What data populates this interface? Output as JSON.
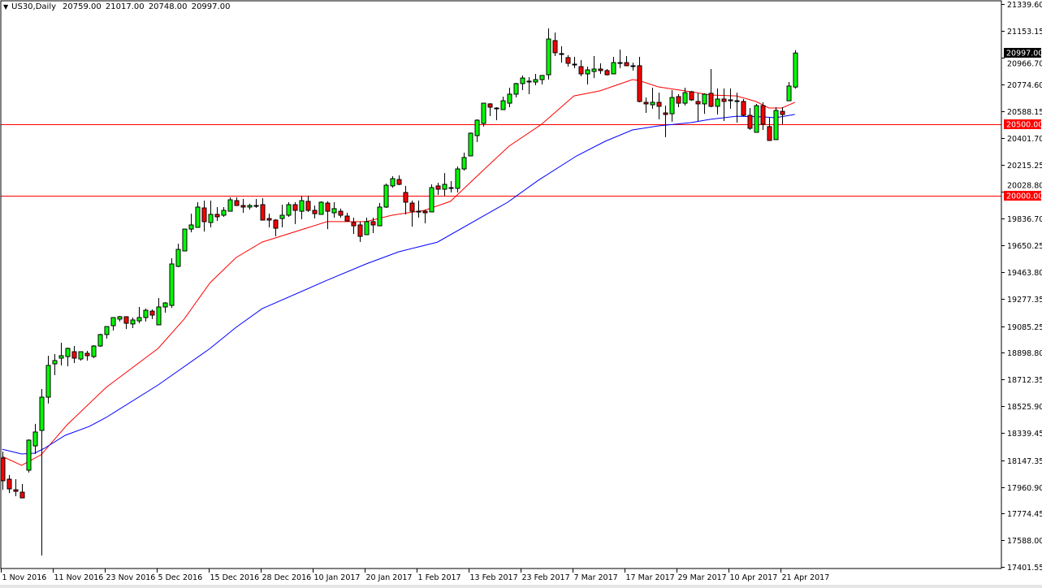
{
  "header": {
    "symbol": "US30,Daily",
    "ohlc_text": "20759.00 21017.00 20748.00 20997.00"
  },
  "colors": {
    "bull": "#00ff00",
    "bear": "#ff0000",
    "outline": "#000000",
    "ma_fast": "#ff0000",
    "ma_slow": "#0000ff",
    "level_line": "#ff0000",
    "level_label_bg": "#ff0000",
    "current_price_bg": "#000000"
  },
  "chart_data": {
    "type": "candlestick",
    "title": "US30,Daily",
    "ylim": [
      17401.55,
      21339.6
    ],
    "y_ticks": [
      "21339.60",
      "21153.15",
      "20966.70",
      "20774.60",
      "20588.15",
      "20401.70",
      "20215.25",
      "20028.80",
      "19836.70",
      "19650.25",
      "19463.80",
      "19277.35",
      "19085.25",
      "18898.80",
      "18712.35",
      "18525.90",
      "18339.45",
      "18147.35",
      "17960.90",
      "17774.45",
      "17588.00",
      "17401.55"
    ],
    "x_labels": [
      {
        "index": 0,
        "label": "1 Nov 2016"
      },
      {
        "index": 8,
        "label": "11 Nov 2016"
      },
      {
        "index": 16,
        "label": "23 Nov 2016"
      },
      {
        "index": 24,
        "label": "5 Dec 2016"
      },
      {
        "index": 32,
        "label": "15 Dec 2016"
      },
      {
        "index": 40,
        "label": "28 Dec 2016"
      },
      {
        "index": 48,
        "label": "10 Jan 2017"
      },
      {
        "index": 56,
        "label": "20 Jan 2017"
      },
      {
        "index": 64,
        "label": "1 Feb 2017"
      },
      {
        "index": 72,
        "label": "13 Feb 2017"
      },
      {
        "index": 80,
        "label": "23 Feb 2017"
      },
      {
        "index": 88,
        "label": "7 Mar 2017"
      },
      {
        "index": 96,
        "label": "17 Mar 2017"
      },
      {
        "index": 104,
        "label": "29 Mar 2017"
      },
      {
        "index": 112,
        "label": "10 Apr 2017"
      },
      {
        "index": 120,
        "label": "21 Apr 2017"
      }
    ],
    "horizontal_levels": [
      {
        "value": 20500,
        "label": "20500.00"
      },
      {
        "value": 20000,
        "label": "20000.00"
      }
    ],
    "current_price": {
      "value": 20997,
      "label": "20997.00"
    },
    "candles_ohlc": [
      [
        18163,
        18208,
        17941,
        18004
      ],
      [
        18015,
        18044,
        17918,
        17947
      ],
      [
        17941,
        18015,
        17896,
        17930
      ],
      [
        17924,
        17981,
        17884,
        17884
      ],
      [
        18078,
        18294,
        18061,
        18288
      ],
      [
        18248,
        18402,
        18191,
        18345
      ],
      [
        18356,
        18646,
        17481,
        18589
      ],
      [
        18589,
        18879,
        18544,
        18811
      ],
      [
        18822,
        18890,
        18743,
        18845
      ],
      [
        18862,
        18970,
        18811,
        18879
      ],
      [
        18873,
        18936,
        18805,
        18930
      ],
      [
        18907,
        18947,
        18828,
        18862
      ],
      [
        18856,
        18907,
        18845,
        18907
      ],
      [
        18896,
        18913,
        18845,
        18879
      ],
      [
        18873,
        18953,
        18862,
        18947
      ],
      [
        18947,
        19032,
        18941,
        19027
      ],
      [
        19027,
        19083,
        18998,
        19083
      ],
      [
        19089,
        19146,
        19055,
        19146
      ],
      [
        19135,
        19157,
        19118,
        19152
      ],
      [
        19152,
        19152,
        19066,
        19106
      ],
      [
        19101,
        19146,
        19072,
        19129
      ],
      [
        19123,
        19220,
        19106,
        19146
      ],
      [
        19146,
        19209,
        19118,
        19197
      ],
      [
        19191,
        19203,
        19135,
        19163
      ],
      [
        19095,
        19282,
        19095,
        19220
      ],
      [
        19220,
        19254,
        19180,
        19248
      ],
      [
        19231,
        19561,
        19214,
        19521
      ],
      [
        19504,
        19663,
        19498,
        19623
      ],
      [
        19612,
        19765,
        19612,
        19765
      ],
      [
        19765,
        19873,
        19743,
        19794
      ],
      [
        19777,
        19953,
        19777,
        19919
      ],
      [
        19913,
        19964,
        19748,
        19817
      ],
      [
        19811,
        19964,
        19777,
        19868
      ],
      [
        19868,
        19919,
        19822,
        19851
      ],
      [
        19862,
        19919,
        19851,
        19896
      ],
      [
        19890,
        19987,
        19890,
        19970
      ],
      [
        19964,
        19987,
        19930,
        19930
      ],
      [
        19930,
        19976,
        19879,
        19919
      ],
      [
        19919,
        19942,
        19902,
        19930
      ],
      [
        19925,
        19976,
        19913,
        19930
      ],
      [
        19936,
        19981,
        19828,
        19828
      ],
      [
        19839,
        19873,
        19777,
        19828
      ],
      [
        19828,
        19834,
        19714,
        19771
      ],
      [
        19839,
        19936,
        19777,
        19862
      ],
      [
        19862,
        19953,
        19851,
        19936
      ],
      [
        19936,
        19953,
        19800,
        19896
      ],
      [
        19890,
        19998,
        19834,
        19964
      ],
      [
        19959,
        19998,
        19885,
        19896
      ],
      [
        19896,
        19930,
        19839,
        19873
      ],
      [
        19868,
        19959,
        19868,
        19953
      ],
      [
        19947,
        19959,
        19765,
        19890
      ],
      [
        19879,
        19953,
        19845,
        19908
      ],
      [
        19890,
        19908,
        19845,
        19862
      ],
      [
        19856,
        19879,
        19817,
        19822
      ],
      [
        19811,
        19845,
        19731,
        19788
      ],
      [
        19794,
        19817,
        19675,
        19714
      ],
      [
        19726,
        19845,
        19726,
        19817
      ],
      [
        19817,
        19845,
        19737,
        19794
      ],
      [
        19788,
        19947,
        19788,
        19919
      ],
      [
        19919,
        20084,
        19913,
        20072
      ],
      [
        20067,
        20135,
        20055,
        20118
      ],
      [
        20112,
        20141,
        20072,
        20078
      ],
      [
        20021,
        20067,
        19868,
        19953
      ],
      [
        19947,
        19964,
        19782,
        19890
      ],
      [
        19890,
        19964,
        19845,
        19885
      ],
      [
        19890,
        19902,
        19805,
        19879
      ],
      [
        19885,
        20078,
        19885,
        20055
      ],
      [
        20067,
        20089,
        20004,
        20044
      ],
      [
        20044,
        20157,
        19998,
        20078
      ],
      [
        20055,
        20101,
        20021,
        20055
      ],
      [
        20050,
        20203,
        20021,
        20186
      ],
      [
        20186,
        20300,
        20175,
        20266
      ],
      [
        20277,
        20441,
        20277,
        20436
      ],
      [
        20419,
        20533,
        20374,
        20527
      ],
      [
        20504,
        20646,
        20482,
        20646
      ],
      [
        20641,
        20646,
        20555,
        20618
      ],
      [
        20607,
        20618,
        20527,
        20612
      ],
      [
        20601,
        20692,
        20601,
        20663
      ],
      [
        20646,
        20754,
        20618,
        20709
      ],
      [
        20709,
        20788,
        20686,
        20783
      ],
      [
        20783,
        20840,
        20737,
        20822
      ],
      [
        20800,
        20828,
        20709,
        20800
      ],
      [
        20794,
        20851,
        20771,
        20811
      ],
      [
        20811,
        20840,
        20777,
        20840
      ],
      [
        20845,
        21169,
        20811,
        21095
      ],
      [
        21084,
        21141,
        20976,
        20999
      ],
      [
        20993,
        21044,
        20930,
        20987
      ],
      [
        20965,
        20982,
        20902,
        20925
      ],
      [
        20919,
        20970,
        20891,
        20919
      ],
      [
        20902,
        20948,
        20834,
        20851
      ],
      [
        20851,
        20902,
        20777,
        20879
      ],
      [
        20868,
        20976,
        20822,
        20885
      ],
      [
        20885,
        20925,
        20851,
        20874
      ],
      [
        20874,
        20885,
        20840,
        20845
      ],
      [
        20851,
        20970,
        20851,
        20930
      ],
      [
        20930,
        21021,
        20891,
        20930
      ],
      [
        20930,
        20976,
        20908,
        20908
      ],
      [
        20908,
        20930,
        20874,
        20908
      ],
      [
        20908,
        20970,
        20652,
        20658
      ],
      [
        20652,
        20686,
        20578,
        20641
      ],
      [
        20635,
        20754,
        20607,
        20652
      ],
      [
        20652,
        20720,
        20533,
        20624
      ],
      [
        20578,
        20629,
        20408,
        20567
      ],
      [
        20572,
        20737,
        20516,
        20686
      ],
      [
        20692,
        20709,
        20618,
        20646
      ],
      [
        20646,
        20754,
        20629,
        20720
      ],
      [
        20726,
        20732,
        20663,
        20669
      ],
      [
        20658,
        20715,
        20521,
        20641
      ],
      [
        20641,
        20715,
        20572,
        20709
      ],
      [
        20715,
        20885,
        20618,
        20624
      ],
      [
        20624,
        20749,
        20567,
        20675
      ],
      [
        20675,
        20749,
        20521,
        20658
      ],
      [
        20669,
        20749,
        20607,
        20669
      ],
      [
        20663,
        20720,
        20510,
        20658
      ],
      [
        20658,
        20675,
        20555,
        20561
      ],
      [
        20561,
        20612,
        20459,
        20470
      ],
      [
        20442,
        20641,
        20442,
        20629
      ],
      [
        20629,
        20652,
        20459,
        20499
      ],
      [
        20482,
        20544,
        20385,
        20385
      ],
      [
        20391,
        20618,
        20391,
        20595
      ],
      [
        20589,
        20618,
        20499,
        20567
      ],
      [
        20663,
        20794,
        20663,
        20766
      ],
      [
        20759,
        21017,
        20748,
        20997
      ]
    ],
    "series": [
      {
        "name": "MA fast (red)",
        "points": [
          [
            0,
            18174
          ],
          [
            3,
            18112
          ],
          [
            6,
            18186
          ],
          [
            10,
            18396
          ],
          [
            16,
            18657
          ],
          [
            24,
            18930
          ],
          [
            28,
            19135
          ],
          [
            32,
            19390
          ],
          [
            36,
            19566
          ],
          [
            40,
            19674
          ],
          [
            50,
            19817
          ],
          [
            56,
            19817
          ],
          [
            60,
            19862
          ],
          [
            65,
            19896
          ],
          [
            69,
            19959
          ],
          [
            74,
            20175
          ],
          [
            78,
            20345
          ],
          [
            83,
            20498
          ],
          [
            88,
            20697
          ],
          [
            92,
            20732
          ],
          [
            97,
            20811
          ],
          [
            98,
            20805
          ],
          [
            101,
            20760
          ],
          [
            106,
            20726
          ],
          [
            109,
            20703
          ],
          [
            113,
            20697
          ],
          [
            116,
            20658
          ],
          [
            118,
            20612
          ],
          [
            120,
            20612
          ],
          [
            122,
            20652
          ]
        ]
      },
      {
        "name": "MA slow (blue)",
        "points": [
          [
            0,
            18225
          ],
          [
            3,
            18191
          ],
          [
            5,
            18197
          ],
          [
            6.5,
            18231
          ],
          [
            9.7,
            18322
          ],
          [
            13.4,
            18384
          ],
          [
            16,
            18447
          ],
          [
            24,
            18674
          ],
          [
            32,
            18930
          ],
          [
            36,
            19078
          ],
          [
            40,
            19208
          ],
          [
            50,
            19407
          ],
          [
            56,
            19521
          ],
          [
            61,
            19606
          ],
          [
            64,
            19640
          ],
          [
            67,
            19674
          ],
          [
            77.8,
            19953
          ],
          [
            82.5,
            20106
          ],
          [
            88.4,
            20277
          ],
          [
            92.8,
            20379
          ],
          [
            97,
            20459
          ],
          [
            101,
            20487
          ],
          [
            106,
            20510
          ],
          [
            109,
            20533
          ],
          [
            113,
            20555
          ],
          [
            117,
            20550
          ],
          [
            119,
            20544
          ],
          [
            122,
            20567
          ]
        ]
      }
    ]
  }
}
